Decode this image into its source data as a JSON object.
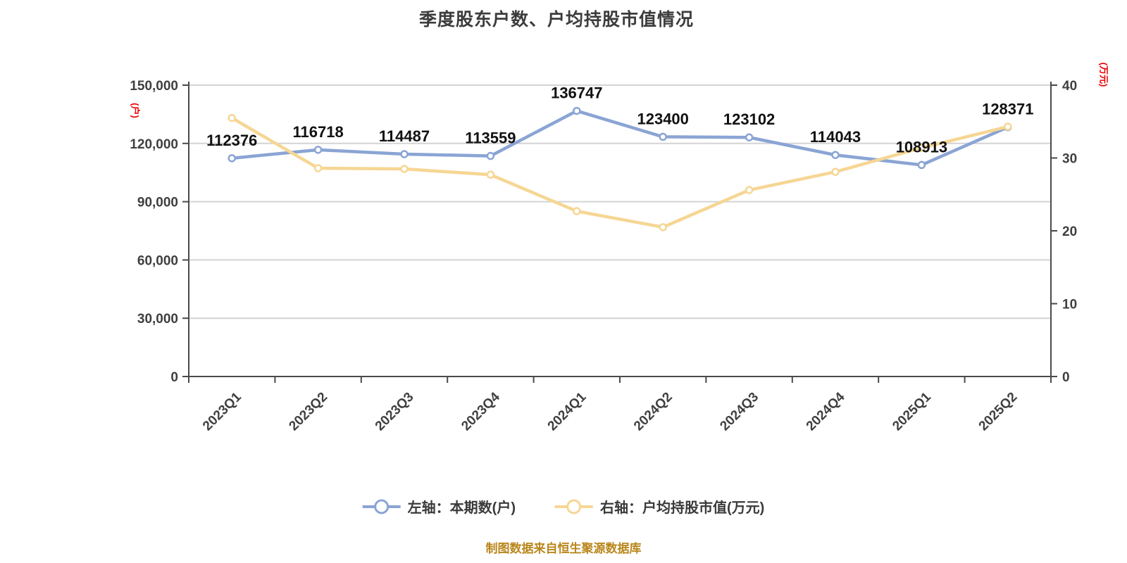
{
  "footer": {
    "text": "制图数据来自恒生聚源数据库",
    "color": "#b9861b"
  },
  "legend": [
    {
      "label": "左轴：本期数(户)",
      "color": "#8aa4d4"
    },
    {
      "label": "右轴：户均持股市值(万元)",
      "color": "#f6d694"
    }
  ],
  "chart_data": {
    "type": "line",
    "title": "季度股东户数、户均持股市值情况",
    "categories": [
      "2023Q1",
      "2023Q2",
      "2023Q3",
      "2023Q4",
      "2024Q1",
      "2024Q2",
      "2024Q3",
      "2024Q4",
      "2025Q1",
      "2025Q2"
    ],
    "series": [
      {
        "name": "左轴：本期数(户)",
        "axis": "left",
        "color": "#8aa4d4",
        "marker_fill": "#ffffff",
        "data_labels": true,
        "values": [
          112376,
          116718,
          114487,
          113559,
          136747,
          123400,
          123102,
          114043,
          108913,
          128371
        ]
      },
      {
        "name": "右轴：户均持股市值(万元)",
        "axis": "right",
        "color": "#f6d694",
        "marker_fill": "#ffffff",
        "data_labels": false,
        "values": [
          35.5,
          28.6,
          28.5,
          27.7,
          22.7,
          20.5,
          25.6,
          28.1,
          31.4,
          34.3
        ]
      }
    ],
    "left_axis": {
      "unit": "(户)",
      "unit_color": "#ee0000",
      "min": 0,
      "max": 150000,
      "tick_step": 30000,
      "tick_labels": [
        "0",
        "30,000",
        "60,000",
        "90,000",
        "120,000",
        "150,000"
      ]
    },
    "right_axis": {
      "unit": "(万元)",
      "unit_color": "#ee0000",
      "min": 0,
      "max": 40,
      "tick_step": 10,
      "tick_labels": [
        "0",
        "10",
        "20",
        "30",
        "40"
      ]
    },
    "grid": true,
    "legend_position": "bottom"
  }
}
